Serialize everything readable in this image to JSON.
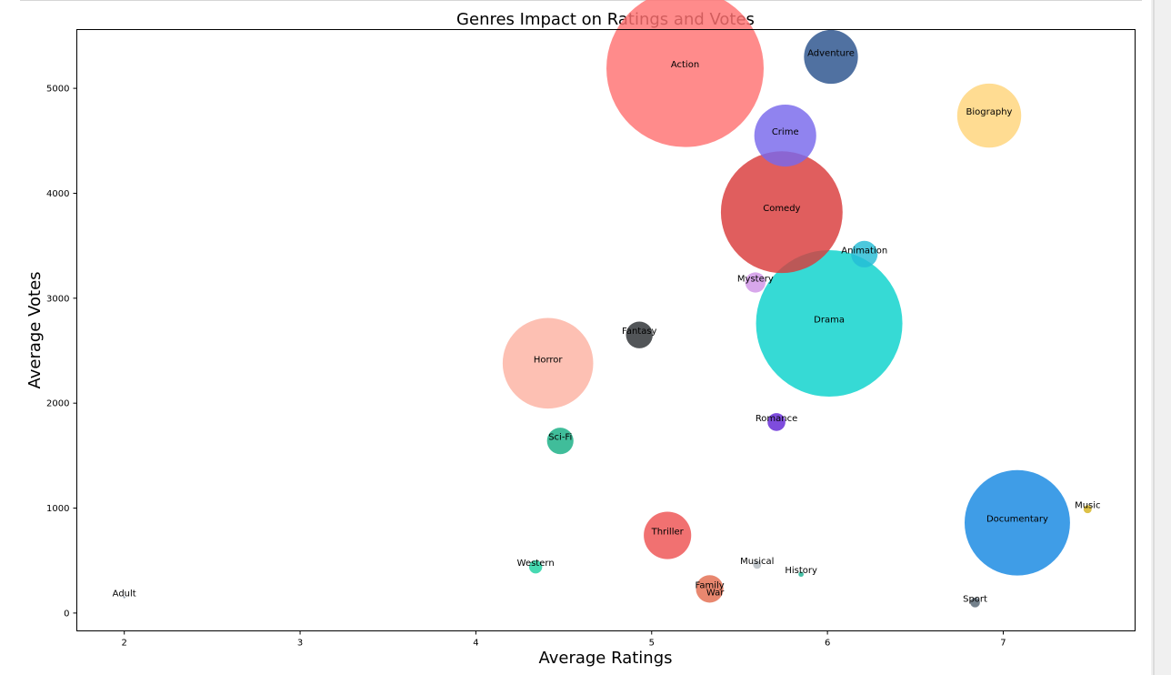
{
  "chart_data": {
    "type": "scatter",
    "title": "Genres Impact on Ratings and Votes",
    "xlabel": "Average Ratings",
    "ylabel": "Average Votes",
    "xlim": [
      1.73,
      7.75
    ],
    "ylim": [
      -170,
      5560
    ],
    "xticks": [
      "2",
      "3",
      "4",
      "5",
      "6",
      "7"
    ],
    "xtick_values": [
      2,
      3,
      4,
      5,
      6,
      7
    ],
    "yticks": [
      "0",
      "1000",
      "2000",
      "3000",
      "4000",
      "5000"
    ],
    "ytick_values": [
      0,
      1000,
      2000,
      3000,
      4000,
      5000
    ],
    "grid": false,
    "points": [
      {
        "genre": "Action",
        "x": 5.19,
        "y": 5190,
        "size": 1870,
        "color": "#ff7272"
      },
      {
        "genre": "Adventure",
        "x": 6.02,
        "y": 5300,
        "size": 220,
        "color": "#29528c"
      },
      {
        "genre": "Biography",
        "x": 6.92,
        "y": 4740,
        "size": 310,
        "color": "#ffd47a"
      },
      {
        "genre": "Crime",
        "x": 5.76,
        "y": 4550,
        "size": 290,
        "color": "#7868ec"
      },
      {
        "genre": "Comedy",
        "x": 5.74,
        "y": 3820,
        "size": 1120,
        "color": "#d93a3a"
      },
      {
        "genre": "Animation",
        "x": 6.21,
        "y": 3420,
        "size": 53,
        "color": "#25bcd6"
      },
      {
        "genre": "Mystery",
        "x": 5.59,
        "y": 3150,
        "size": 31,
        "color": "#cf94e6"
      },
      {
        "genre": "Drama",
        "x": 6.01,
        "y": 2760,
        "size": 1620,
        "color": "#0ad2cc"
      },
      {
        "genre": "Fantasy",
        "x": 4.93,
        "y": 2650,
        "size": 54,
        "color": "#2c2f33"
      },
      {
        "genre": "Horror",
        "x": 4.41,
        "y": 2380,
        "size": 620,
        "color": "#fdb2a2"
      },
      {
        "genre": "Romance",
        "x": 5.71,
        "y": 1820,
        "size": 24,
        "color": "#6124d6"
      },
      {
        "genre": "Sci-Fi",
        "x": 4.48,
        "y": 1640,
        "size": 53,
        "color": "#16ae84"
      },
      {
        "genre": "Documentary",
        "x": 7.08,
        "y": 860,
        "size": 840,
        "color": "#1587e2"
      },
      {
        "genre": "Music",
        "x": 7.48,
        "y": 990,
        "size": 5,
        "color": "#d6b31f"
      },
      {
        "genre": "Thriller",
        "x": 5.09,
        "y": 740,
        "size": 170,
        "color": "#ee5252"
      },
      {
        "genre": "Western",
        "x": 4.34,
        "y": 440,
        "size": 13,
        "color": "#1fd1a1"
      },
      {
        "genre": "Musical",
        "x": 5.6,
        "y": 460,
        "size": 5,
        "color": "#b2bac0"
      },
      {
        "genre": "History",
        "x": 5.85,
        "y": 370,
        "size": 2,
        "color": "#1fb394"
      },
      {
        "genre": "Family",
        "x": 5.33,
        "y": 230,
        "size": 57,
        "color": "#e36c4f"
      },
      {
        "genre": "War",
        "x": 5.33,
        "y": 230,
        "size": 0,
        "color": "#e36c4f"
      },
      {
        "genre": "Sport",
        "x": 6.84,
        "y": 100,
        "size": 7,
        "color": "#566573"
      },
      {
        "genre": "Adult",
        "x": 2.0,
        "y": 150,
        "size": 0.3,
        "color": "#7a8a99"
      }
    ]
  }
}
